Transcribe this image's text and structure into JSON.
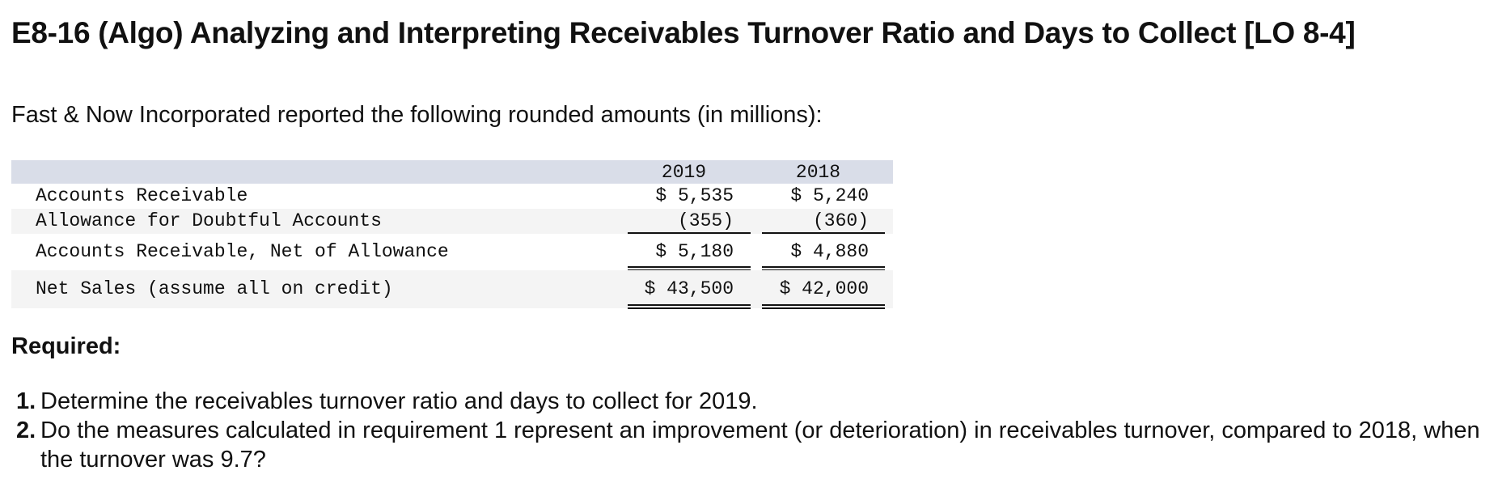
{
  "title": "E8-16 (Algo) Analyzing and Interpreting Receivables Turnover Ratio and Days to Collect [LO 8-4]",
  "intro": "Fast & Now Incorporated reported the following rounded amounts (in millions):",
  "table": {
    "years": [
      "2019",
      "2018"
    ],
    "rows": [
      {
        "label": "Accounts Receivable",
        "v2019": "$ 5,535",
        "v2018": "$ 5,240"
      },
      {
        "label": "Allowance for Doubtful Accounts",
        "v2019": "(355)",
        "v2018": "(360)"
      },
      {
        "label": "Accounts Receivable, Net of Allowance",
        "v2019": "$ 5,180",
        "v2018": "$ 4,880"
      },
      {
        "label": "Net Sales (assume all on credit)",
        "v2019": "$ 43,500",
        "v2018": "$ 42,000"
      }
    ]
  },
  "required": {
    "heading": "Required:",
    "items": [
      {
        "number": "1.",
        "text": "Determine the receivables turnover ratio and days to collect for 2019."
      },
      {
        "number": "2.",
        "text": "Do the measures calculated in requirement 1 represent an improvement (or deterioration) in receivables turnover, compared to 2018, when the turnover was 9.7?"
      }
    ]
  }
}
